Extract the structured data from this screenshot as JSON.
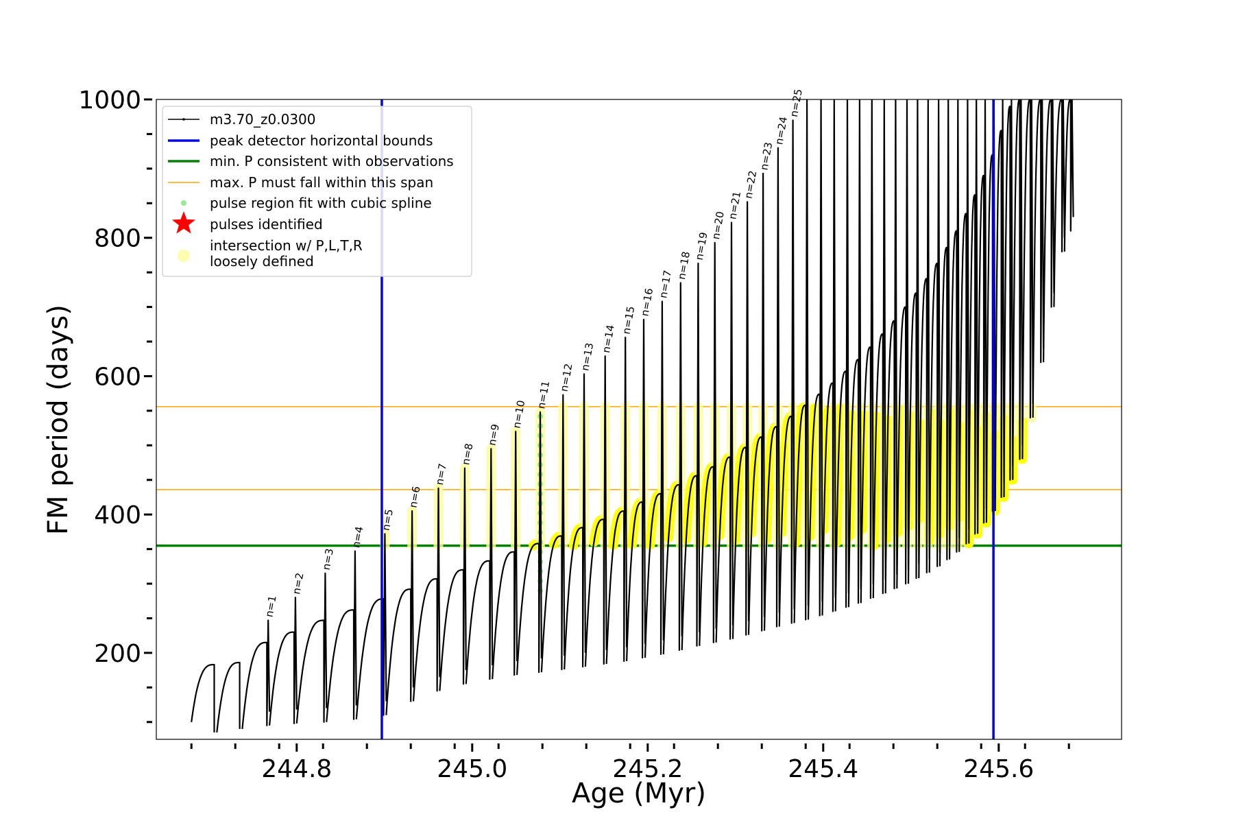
{
  "chart_data": {
    "type": "line",
    "xlabel": "Age (Myr)",
    "ylabel": "FM period (days)",
    "xlim": [
      244.64,
      245.74
    ],
    "ylim": [
      75,
      1000
    ],
    "xticks": [
      244.8,
      245.0,
      245.2,
      245.4,
      245.6
    ],
    "xtick_labels": [
      "244.8",
      "245.0",
      "245.2",
      "245.4",
      "245.6"
    ],
    "yticks": [
      200,
      400,
      600,
      800,
      1000
    ],
    "ytick_labels": [
      "200",
      "400",
      "600",
      "800",
      "1000"
    ],
    "grid": false,
    "legend_position": "top-left",
    "legend": [
      {
        "label": "m3.70_z0.0300",
        "kind": "line-marker",
        "color": "#000000"
      },
      {
        "label": "peak detector horizontal bounds",
        "kind": "line",
        "color": "#0000ff"
      },
      {
        "label": "min. P consistent with observations",
        "kind": "line",
        "color": "#008000"
      },
      {
        "label": "max. P must fall within this span",
        "kind": "line",
        "color": "#ffa500"
      },
      {
        "label": "pulse region fit with cubic spline",
        "kind": "dot",
        "color": "#90ee90"
      },
      {
        "label": "pulses identified",
        "kind": "star",
        "color": "#ff0000"
      },
      {
        "label": "intersection w/ P,L,T,R\nloosely defined",
        "kind": "dot",
        "color": "#fdfdb0"
      }
    ],
    "vertical_lines": [
      244.897,
      245.594
    ],
    "min_period_line": 355,
    "max_period_span": [
      436,
      556
    ],
    "start_age": 244.68,
    "pulses": [
      {
        "age": 244.706,
        "peak": 183,
        "trough": 85,
        "fresh_peak": null,
        "label": null
      },
      {
        "age": 244.735,
        "peak": 186,
        "trough": 90,
        "fresh_peak": null,
        "label": null
      },
      {
        "age": 244.766,
        "peak": 215,
        "trough": 95,
        "fresh_peak": 247,
        "label": "n=1"
      },
      {
        "age": 244.797,
        "peak": 230,
        "trough": 98,
        "fresh_peak": 280,
        "label": "n=2"
      },
      {
        "age": 244.831,
        "peak": 247,
        "trough": 100,
        "fresh_peak": 315,
        "label": "n=3"
      },
      {
        "age": 244.865,
        "peak": 262,
        "trough": 104,
        "fresh_peak": 347,
        "label": "n=4"
      },
      {
        "age": 244.899,
        "peak": 278,
        "trough": 110,
        "fresh_peak": 372,
        "label": "n=5"
      },
      {
        "age": 244.93,
        "peak": 292,
        "trough": 130,
        "fresh_peak": 405,
        "label": "n=6"
      },
      {
        "age": 244.96,
        "peak": 307,
        "trough": 145,
        "fresh_peak": 438,
        "label": "n=7"
      },
      {
        "age": 244.99,
        "peak": 320,
        "trough": 155,
        "fresh_peak": 467,
        "label": "n=8"
      },
      {
        "age": 245.02,
        "peak": 333,
        "trough": 162,
        "fresh_peak": 495,
        "label": "n=9"
      },
      {
        "age": 245.048,
        "peak": 346,
        "trough": 168,
        "fresh_peak": 520,
        "label": "n=10"
      },
      {
        "age": 245.076,
        "peak": 358,
        "trough": 172,
        "fresh_peak": 548,
        "label": "n=11"
      },
      {
        "age": 245.102,
        "peak": 369,
        "trough": 176,
        "fresh_peak": 573,
        "label": "n=12"
      },
      {
        "age": 245.126,
        "peak": 381,
        "trough": 180,
        "fresh_peak": 603,
        "label": "n=13"
      },
      {
        "age": 245.15,
        "peak": 393,
        "trough": 184,
        "fresh_peak": 629,
        "label": "n=14"
      },
      {
        "age": 245.173,
        "peak": 405,
        "trough": 188,
        "fresh_peak": 656,
        "label": "n=15"
      },
      {
        "age": 245.194,
        "peak": 418,
        "trough": 193,
        "fresh_peak": 682,
        "label": "n=16"
      },
      {
        "age": 245.215,
        "peak": 430,
        "trough": 198,
        "fresh_peak": 708,
        "label": "n=17"
      },
      {
        "age": 245.236,
        "peak": 443,
        "trough": 204,
        "fresh_peak": 735,
        "label": "n=18"
      },
      {
        "age": 245.256,
        "peak": 456,
        "trough": 210,
        "fresh_peak": 763,
        "label": "n=19"
      },
      {
        "age": 245.275,
        "peak": 469,
        "trough": 215,
        "fresh_peak": 793,
        "label": "n=20"
      },
      {
        "age": 245.294,
        "peak": 483,
        "trough": 220,
        "fresh_peak": 822,
        "label": "n=21"
      },
      {
        "age": 245.312,
        "peak": 497,
        "trough": 226,
        "fresh_peak": 852,
        "label": "n=22"
      },
      {
        "age": 245.33,
        "peak": 512,
        "trough": 232,
        "fresh_peak": 893,
        "label": "n=23"
      },
      {
        "age": 245.347,
        "peak": 527,
        "trough": 238,
        "fresh_peak": 930,
        "label": "n=24"
      },
      {
        "age": 245.364,
        "peak": 542,
        "trough": 243,
        "fresh_peak": 970,
        "label": "n=25"
      },
      {
        "age": 245.38,
        "peak": 558,
        "trough": 248,
        "fresh_peak": 1000,
        "label": null
      },
      {
        "age": 245.396,
        "peak": 574,
        "trough": 254,
        "fresh_peak": 1000,
        "label": null
      },
      {
        "age": 245.411,
        "peak": 590,
        "trough": 260,
        "fresh_peak": 1000,
        "label": null
      },
      {
        "age": 245.426,
        "peak": 607,
        "trough": 266,
        "fresh_peak": 1000,
        "label": null
      },
      {
        "age": 245.44,
        "peak": 624,
        "trough": 272,
        "fresh_peak": 1000,
        "label": null
      },
      {
        "age": 245.454,
        "peak": 642,
        "trough": 279,
        "fresh_peak": 1000,
        "label": null
      },
      {
        "age": 245.468,
        "peak": 661,
        "trough": 286,
        "fresh_peak": 1000,
        "label": null
      },
      {
        "age": 245.481,
        "peak": 680,
        "trough": 293,
        "fresh_peak": 1000,
        "label": null
      },
      {
        "age": 245.494,
        "peak": 700,
        "trough": 300,
        "fresh_peak": 1000,
        "label": null
      },
      {
        "age": 245.506,
        "peak": 720,
        "trough": 308,
        "fresh_peak": 1000,
        "label": null
      },
      {
        "age": 245.518,
        "peak": 741,
        "trough": 316,
        "fresh_peak": 1000,
        "label": null
      },
      {
        "age": 245.53,
        "peak": 763,
        "trough": 325,
        "fresh_peak": 1000,
        "label": null
      },
      {
        "age": 245.541,
        "peak": 786,
        "trough": 335,
        "fresh_peak": 1000,
        "label": null
      },
      {
        "age": 245.552,
        "peak": 810,
        "trough": 346,
        "fresh_peak": 1000,
        "label": null
      },
      {
        "age": 245.563,
        "peak": 835,
        "trough": 358,
        "fresh_peak": 1000,
        "label": null
      },
      {
        "age": 245.573,
        "peak": 862,
        "trough": 372,
        "fresh_peak": 1000,
        "label": null
      },
      {
        "age": 245.583,
        "peak": 890,
        "trough": 388,
        "fresh_peak": 1000,
        "label": null
      },
      {
        "age": 245.593,
        "peak": 920,
        "trough": 405,
        "fresh_peak": 1000,
        "label": null
      },
      {
        "age": 245.603,
        "peak": 955,
        "trough": 425,
        "fresh_peak": 1000,
        "label": null
      },
      {
        "age": 245.613,
        "peak": 990,
        "trough": 450,
        "fresh_peak": 1000,
        "label": null
      },
      {
        "age": 245.624,
        "peak": 1000,
        "trough": 480,
        "fresh_peak": 1000,
        "label": null
      },
      {
        "age": 245.636,
        "peak": 1000,
        "trough": 540,
        "fresh_peak": 1000,
        "label": null
      },
      {
        "age": 245.648,
        "peak": 1000,
        "trough": 620,
        "fresh_peak": 1000,
        "label": null
      },
      {
        "age": 245.66,
        "peak": 1000,
        "trough": 700,
        "fresh_peak": 1000,
        "label": null
      },
      {
        "age": 245.672,
        "peak": 1000,
        "trough": 780,
        "fresh_peak": 1000,
        "label": null
      },
      {
        "age": 245.682,
        "peak": 1000,
        "trough": 810,
        "fresh_peak": 1000,
        "label": null
      }
    ]
  }
}
